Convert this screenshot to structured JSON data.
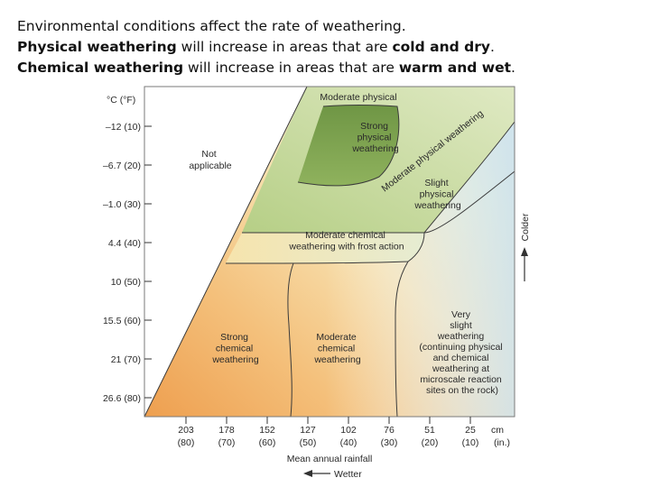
{
  "intro": {
    "line1": "Environmental conditions affect the rate of weathering.",
    "line2": {
      "bold1": "Physical weathering",
      "text1": " will increase in areas that are ",
      "bold2": "cold and dry",
      "text2": "."
    },
    "line3": {
      "bold1": "Chemical weathering",
      "text1": " will increase in areas that are ",
      "bold2": "warm and wet",
      "text2": "."
    }
  },
  "diagram": {
    "y_axis_header": "°C  (°F)",
    "y_ticks": [
      "–12  (10)",
      "–6.7  (20)",
      "–1.0  (30)",
      "4.4  (40)",
      "10  (50)",
      "15.5  (60)",
      "21  (70)",
      "26.6  (80)"
    ],
    "x_ticks": [
      {
        "cm": "203",
        "in": "(80)"
      },
      {
        "cm": "178",
        "in": "(70)"
      },
      {
        "cm": "152",
        "in": "(60)"
      },
      {
        "cm": "127",
        "in": "(50)"
      },
      {
        "cm": "102",
        "in": "(40)"
      },
      {
        "cm": "76",
        "in": "(30)"
      },
      {
        "cm": "51",
        "in": "(20)"
      },
      {
        "cm": "25",
        "in": "(10)"
      }
    ],
    "x_unit_cm": "cm",
    "x_unit_in": "(in.)",
    "x_axis_label": "Mean annual rainfall",
    "wetter_label": "Wetter",
    "colder_label": "Colder",
    "regions": {
      "not_applicable": [
        "Not",
        "applicable"
      ],
      "moderate_physical_top": "Moderate physical",
      "strong_physical": [
        "Strong",
        "physical",
        "weathering"
      ],
      "moderate_physical_diagonal": "Moderate physical weathering",
      "slight_physical": [
        "Slight",
        "physical",
        "weathering"
      ],
      "moderate_chemical_frost": [
        "Moderate chemical",
        "weathering with frost action"
      ],
      "strong_chemical": [
        "Strong",
        "chemical",
        "weathering"
      ],
      "moderate_chemical": [
        "Moderate",
        "chemical",
        "weathering"
      ],
      "very_slight": [
        "Very",
        "slight",
        "weathering",
        "(continuing physical",
        "and chemical",
        "weathering at",
        "microscale reaction",
        "sites on the rock)"
      ]
    },
    "colors": {
      "green_dark": "#7da04f",
      "green_light": "#cfe0a8",
      "blue_light": "#cfe3ee",
      "orange": "#f0ae62",
      "cream": "#fbf2d2"
    }
  }
}
